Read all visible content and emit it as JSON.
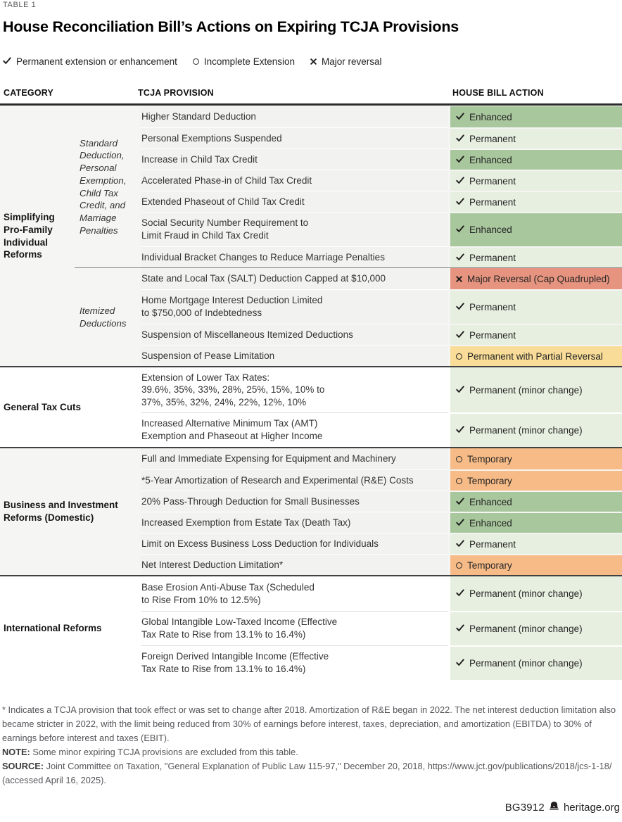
{
  "meta": {
    "table_label": "TABLE 1",
    "title": "House Reconciliation Bill’s Actions on Expiring TCJA Provisions",
    "footer_id": "BG3912",
    "footer_site": "heritage.org"
  },
  "legend": {
    "items": [
      {
        "icon": "check",
        "label": "Permanent extension or enhancement"
      },
      {
        "icon": "circle",
        "label": "Incomplete Extension"
      },
      {
        "icon": "x",
        "label": "Major reversal"
      }
    ]
  },
  "columns": {
    "category": "CATEGORY",
    "provision": "TCJA PROVISION",
    "action": "HOUSE BILL ACTION"
  },
  "colors": {
    "green_dark": "#a9c79d",
    "green_light": "#e7efe0",
    "red": "#e6947f",
    "yellow": "#f8dc97",
    "orange": "#f6bb87",
    "shaded_section_bg": "#f5f5f3",
    "shaded_cell_bg": "#f2f2f0",
    "shaded_separator": "#ffffff",
    "white_separator": "#dedede"
  },
  "sections": [
    {
      "category": "Simplifying Pro-Family Individual Reforms",
      "shaded": true,
      "cat_width": 106,
      "subgroups": [
        {
          "subcategory": "Standard Deduction, Personal Exemption, Child Tax Credit, and Marriage Penalties",
          "rows": [
            {
              "provision": "Higher Standard Deduction",
              "action": "Enhanced",
              "icon": "check",
              "tone": "green_dark",
              "lines": 1
            },
            {
              "provision": "Personal Exemptions Suspended",
              "action": "Permanent",
              "icon": "check",
              "tone": "green_light",
              "lines": 1
            },
            {
              "provision": "Increase in Child Tax Credit",
              "action": "Enhanced",
              "icon": "check",
              "tone": "green_dark",
              "lines": 1
            },
            {
              "provision": "Accelerated Phase-in of Child Tax Credit",
              "action": "Permanent",
              "icon": "check",
              "tone": "green_light",
              "lines": 1
            },
            {
              "provision": "Extended Phaseout of Child Tax Credit",
              "action": "Permanent",
              "icon": "check",
              "tone": "green_light",
              "lines": 1
            },
            {
              "provision": "Social Security Number Requirement to\nLimit Fraud in Child Tax Credit",
              "action": "Enhanced",
              "icon": "check",
              "tone": "green_dark",
              "lines": 2
            },
            {
              "provision": "Individual Bracket Changes to Reduce Marriage Penalties",
              "action": "Permanent",
              "icon": "check",
              "tone": "green_light",
              "lines": 1
            }
          ]
        },
        {
          "subcategory": "Itemized Deductions",
          "rows": [
            {
              "provision": "State and Local Tax (SALT) Deduction Capped at $10,000",
              "action": "Major Reversal (Cap Quadrupled)",
              "icon": "x",
              "tone": "red",
              "lines": 1
            },
            {
              "provision": "Home Mortgage Interest Deduction Limited\nto $750,000 of Indebtedness",
              "action": "Permanent",
              "icon": "check",
              "tone": "green_light",
              "lines": 2
            },
            {
              "provision": "Suspension of Miscellaneous Itemized Deductions",
              "action": "Permanent",
              "icon": "check",
              "tone": "green_light",
              "lines": 1
            },
            {
              "provision": "Suspension of Pease Limitation",
              "action": "Permanent with Partial Reversal",
              "icon": "circle",
              "tone": "yellow",
              "lines": 1
            }
          ]
        }
      ]
    },
    {
      "category": "General Tax Cuts",
      "shaded": false,
      "cat_width": 200,
      "subgroups": [
        {
          "subcategory": "",
          "rows": [
            {
              "provision": "Extension of Lower Tax Rates:\n39.6%, 35%, 33%, 28%, 25%, 15%, 10% to\n37%, 35%, 32%, 24%, 22%, 12%, 10%",
              "action": "Permanent (minor change)",
              "icon": "check",
              "tone": "green_light",
              "lines": 3
            },
            {
              "provision": "Increased Alternative Minimum Tax (AMT)\nExemption and Phaseout at Higher Income",
              "action": "Permanent (minor change)",
              "icon": "check",
              "tone": "green_light",
              "lines": 2
            }
          ]
        }
      ]
    },
    {
      "category": "Business and Investment Reforms (Domestic)",
      "shaded": true,
      "cat_width": 200,
      "subgroups": [
        {
          "subcategory": "",
          "rows": [
            {
              "provision": "Full and Immediate Expensing for Equipment and Machinery",
              "action": "Temporary",
              "icon": "circle",
              "tone": "orange",
              "lines": 1
            },
            {
              "provision": "*5-Year Amortization of Research and Experimental (R&E) Costs",
              "action": "Temporary",
              "icon": "circle",
              "tone": "orange",
              "lines": 1
            },
            {
              "provision": "20% Pass-Through Deduction for Small Businesses",
              "action": "Enhanced",
              "icon": "check",
              "tone": "green_dark",
              "lines": 1
            },
            {
              "provision": "Increased Exemption from Estate Tax (Death Tax)",
              "action": "Enhanced",
              "icon": "check",
              "tone": "green_dark",
              "lines": 1
            },
            {
              "provision": "Limit on Excess Business Loss Deduction for Individuals",
              "action": "Permanent",
              "icon": "check",
              "tone": "green_light",
              "lines": 1
            },
            {
              "provision": "Net Interest Deduction Limitation*",
              "action": "Temporary",
              "icon": "circle",
              "tone": "orange",
              "lines": 1
            }
          ]
        }
      ]
    },
    {
      "category": "International Reforms",
      "shaded": false,
      "cat_width": 200,
      "subgroups": [
        {
          "subcategory": "",
          "rows": [
            {
              "provision": "Base Erosion Anti-Abuse Tax (Scheduled\nto Rise From 10% to 12.5%)",
              "action": "Permanent (minor change)",
              "icon": "check",
              "tone": "green_light",
              "lines": 2
            },
            {
              "provision": "Global Intangible Low-Taxed Income (Effective\nTax Rate to Rise from 13.1% to 16.4%)",
              "action": "Permanent (minor change)",
              "icon": "check",
              "tone": "green_light",
              "lines": 2
            },
            {
              "provision": "Foreign Derived Intangible Income (Effective\nTax Rate to Rise from 13.1% to 16.4%)",
              "action": "Permanent (minor change)",
              "icon": "check",
              "tone": "green_light",
              "lines": 2
            }
          ]
        }
      ]
    }
  ],
  "footnotes": {
    "star_text": "* Indicates a TCJA provision that took effect or was set to change after 2018. Amortization of R&E began in 2022. The net interest deduction limitation also became stricter in 2022, with the limit being reduced from 30% of earnings before interest, taxes, depreciation, and amortization (EBITDA) to 30% of earnings before interest and taxes (EBIT).",
    "note_label": "NOTE:",
    "note_text": " Some minor expiring TCJA provisions are excluded from this table.",
    "source_label": "SOURCE:",
    "source_text": " Joint Committee on Taxation, \"General Explanation of Public Law 115-97,\" December 20, 2018, https://www.jct.gov/publications/2018/jcs-1-18/ (accessed April 16, 2025)."
  }
}
